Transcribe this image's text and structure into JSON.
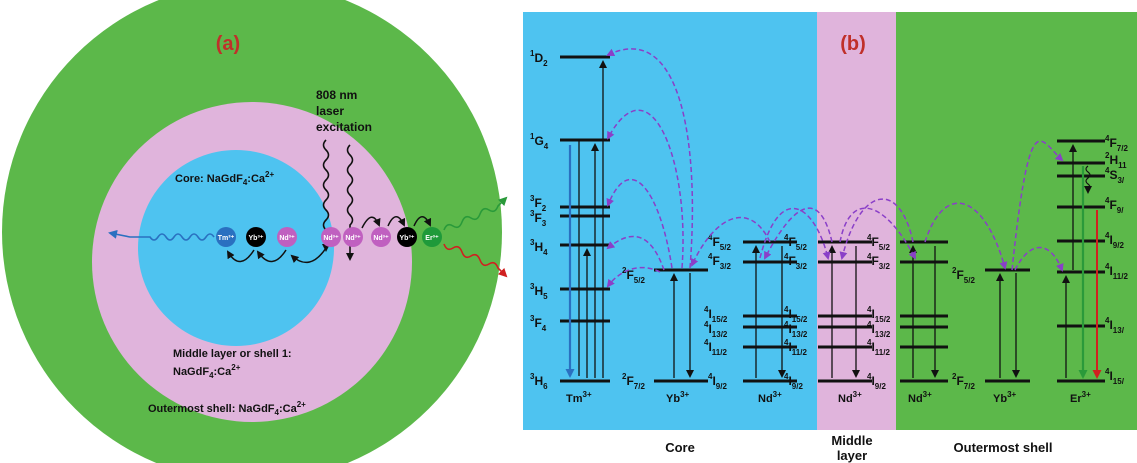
{
  "panel_a": {
    "label": "(a)",
    "core_text": "Core: NaGdF",
    "core_text_sub": "4",
    "core_text_tail": ":Ca",
    "core_text_sup": "2+",
    "middle_text_line1": "Middle  layer or shell 1:",
    "middle_text_line2": "NaGdF",
    "middle_text_line2_sub": "4",
    "middle_text_line2_tail": ":Ca",
    "middle_text_line2_sup": "2+",
    "outer_text": "Outermost shell: NaGdF",
    "outer_text_sub": "4",
    "outer_text_tail": ":Ca",
    "outer_text_sup": "2+",
    "laser_line1": "808 nm",
    "laser_line2": "laser",
    "laser_line3": "excitation",
    "ions": [
      "Tm³⁺",
      "Yb³⁺",
      "Nd³⁺",
      "Nd³⁺",
      "Nd³⁺",
      "Nd³⁺",
      "Yb³⁺",
      "Er³⁺"
    ],
    "colors": {
      "outer": "#5cb84a",
      "middle": "#e0b4dc",
      "core": "#4ec3f0",
      "label": "#c0302a"
    }
  },
  "panel_b": {
    "label": "(b)",
    "regions": [
      "Core",
      "Middle",
      "layer",
      "Outermost shell"
    ],
    "ions": {
      "tm": "Tm",
      "yb": "Yb",
      "nd": "Nd",
      "er": "Er",
      "charge": "3+"
    },
    "tm_levels": [
      {
        "base": "D",
        "sup": "1",
        "sub": "2"
      },
      {
        "base": "G",
        "sup": "1",
        "sub": "4"
      },
      {
        "base": "F",
        "sup": "3",
        "sub": "2"
      },
      {
        "base": "F",
        "sup": "3",
        "sub": "3"
      },
      {
        "base": "H",
        "sup": "3",
        "sub": "4"
      },
      {
        "base": "H",
        "sup": "3",
        "sub": "5"
      },
      {
        "base": "F",
        "sup": "3",
        "sub": "4"
      },
      {
        "base": "H",
        "sup": "3",
        "sub": "6"
      }
    ],
    "yb_levels": [
      {
        "base": "F",
        "sup": "2",
        "sub": "5/2"
      },
      {
        "base": "F",
        "sup": "2",
        "sub": "7/2"
      }
    ],
    "nd_levels": [
      {
        "base": "F",
        "sup": "4",
        "sub": "5/2"
      },
      {
        "base": "F",
        "sup": "4",
        "sub": "3/2"
      },
      {
        "base": "I",
        "sup": "4",
        "sub": "15/2"
      },
      {
        "base": "I",
        "sup": "4",
        "sub": "13/2"
      },
      {
        "base": "I",
        "sup": "4",
        "sub": "11/2"
      },
      {
        "base": "I",
        "sup": "4",
        "sub": "9/2"
      }
    ],
    "er_levels": [
      {
        "base": "F",
        "sup": "4",
        "sub": "7/2"
      },
      {
        "base": "H",
        "sup": "2",
        "sub": "11"
      },
      {
        "base": "S",
        "sup": "4",
        "sub": "3/"
      },
      {
        "base": "F",
        "sup": "4",
        "sub": "9/"
      },
      {
        "base": "I",
        "sup": "4",
        "sub": "9/2"
      },
      {
        "base": "I",
        "sup": "4",
        "sub": "11/2"
      },
      {
        "base": "I",
        "sup": "4",
        "sub": "13/"
      },
      {
        "base": "I",
        "sup": "4",
        "sub": "15/"
      }
    ],
    "colors": {
      "core": "#4ec3f0",
      "middle": "#e0b4dc",
      "outer": "#5cb84a",
      "label": "#c0302a",
      "transfer": "#8a3fc8"
    }
  }
}
